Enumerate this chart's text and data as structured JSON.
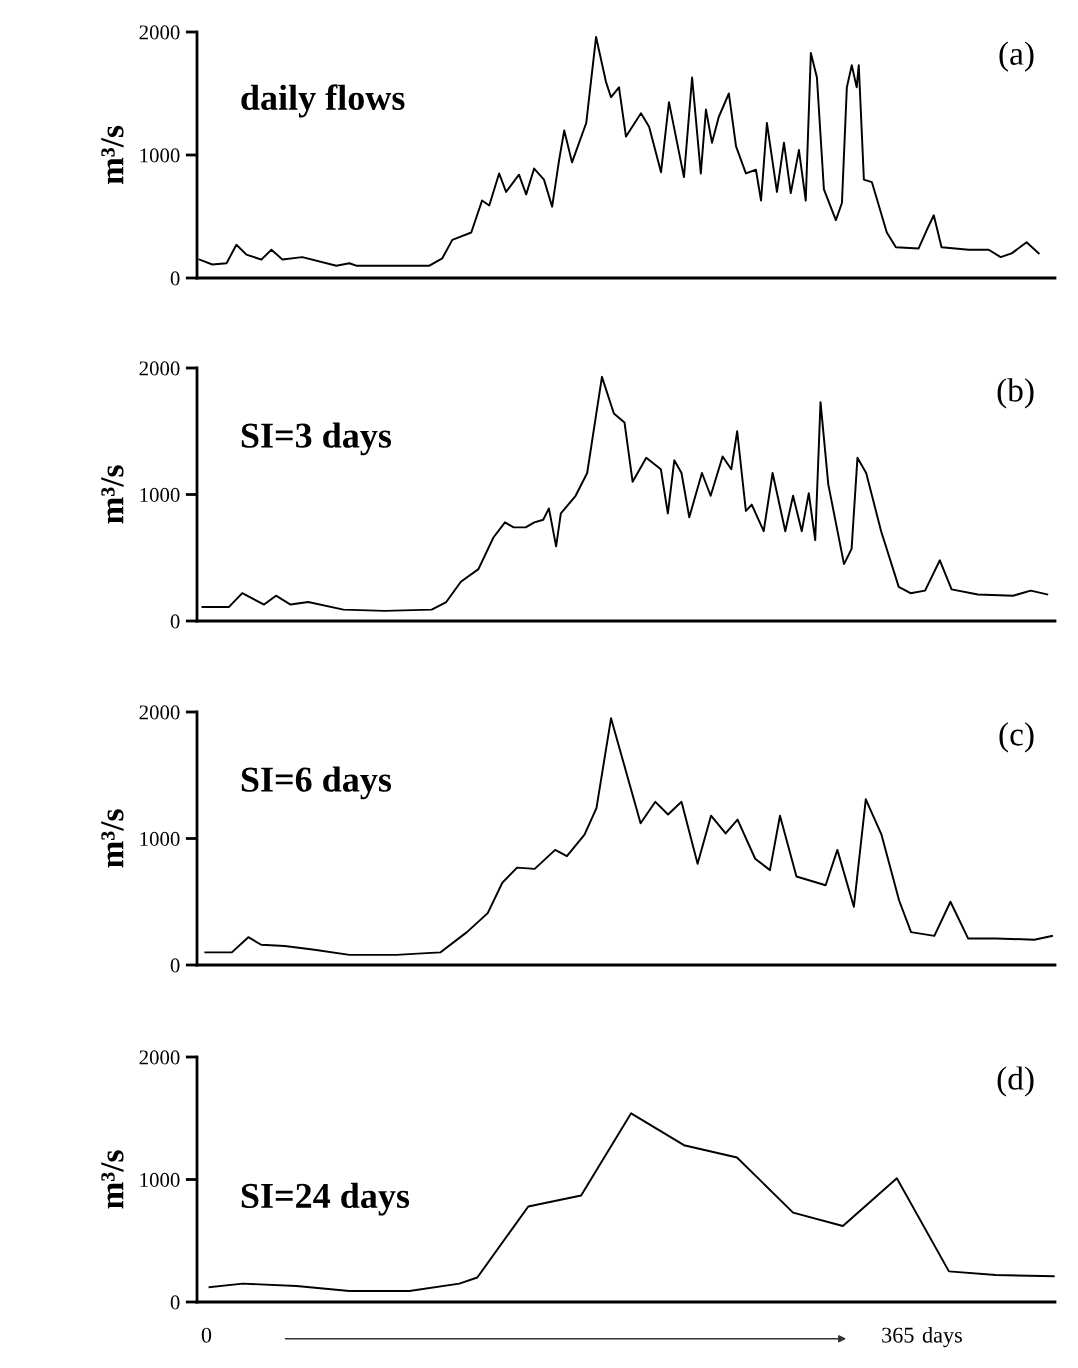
{
  "chart_data": [
    {
      "type": "line",
      "ylabel": "m³/s",
      "annotations": [
        "daily flows",
        "(a)"
      ],
      "color": "#000000",
      "xlim": [
        -5,
        448
      ],
      "ylim": [
        0,
        2000
      ],
      "yticks": [
        0,
        1000,
        2000
      ],
      "tick_labels": "y",
      "x": [
        -3.7,
        3.1,
        10.6,
        15.8,
        21.1,
        29.0,
        34.3,
        40.1,
        50.6,
        68.6,
        75.4,
        79.1,
        117.7,
        124.5,
        129.8,
        139.8,
        145.5,
        149.3,
        154.5,
        158.2,
        165.0,
        168.8,
        173.0,
        178.2,
        182.5,
        186.2,
        188.9,
        193.0,
        200.5,
        205.7,
        211.0,
        213.6,
        217.8,
        221.5,
        229.4,
        233.7,
        240.0,
        244.2,
        252.1,
        256.4,
        261.0,
        263.7,
        266.9,
        270.5,
        275.8,
        279.6,
        284.8,
        290.1,
        292.8,
        295.9,
        301.2,
        304.9,
        308.5,
        312.8,
        316.4,
        319.1,
        322.3,
        326.0,
        332.3,
        335.5,
        338.1,
        340.7,
        343.3,
        344.4,
        347.1,
        351.3,
        359.2,
        364.0,
        376.0,
        380.3,
        384.0,
        388.1,
        402.4,
        413.0,
        419.3,
        425.1,
        433.0,
        439.4
      ],
      "values": [
        150,
        110,
        120,
        270,
        190,
        150,
        230,
        150,
        170,
        100,
        120,
        100,
        100,
        160,
        310,
        370,
        630,
        590,
        850,
        700,
        840,
        680,
        890,
        800,
        580,
        960,
        1200,
        940,
        1260,
        1960,
        1590,
        1470,
        1550,
        1150,
        1340,
        1230,
        860,
        1430,
        820,
        1630,
        850,
        1370,
        1100,
        1310,
        1500,
        1070,
        850,
        880,
        630,
        1260,
        700,
        1100,
        690,
        1040,
        630,
        1830,
        1630,
        720,
        470,
        610,
        1550,
        1730,
        1550,
        1730,
        800,
        780,
        370,
        250,
        240,
        390,
        510,
        250,
        230,
        230,
        170,
        200,
        290,
        200
      ]
    },
    {
      "type": "line",
      "ylabel": "m³/s",
      "annotations": [
        "SI=3 days",
        "(b)"
      ],
      "color": "#000000",
      "xlim": [
        -5,
        448
      ],
      "ylim": [
        0,
        2000
      ],
      "yticks": [
        0,
        1000,
        2000
      ],
      "tick_labels": "y",
      "x": [
        -2.1,
        11.8,
        18.9,
        30.4,
        36.7,
        44.4,
        53.7,
        72.3,
        94.1,
        118.9,
        126.6,
        134.3,
        143.6,
        151.5,
        157.6,
        162.2,
        168.5,
        173.1,
        177.8,
        180.8,
        184.6,
        187.1,
        194.9,
        201.0,
        208.8,
        215.1,
        220.7,
        225.0,
        232.2,
        239.9,
        243.6,
        247.0,
        250.8,
        254.9,
        261.6,
        266.2,
        272.5,
        277.1,
        280.2,
        284.8,
        287.9,
        294.2,
        298.9,
        305.6,
        309.7,
        314.3,
        318.0,
        321.4,
        324.2,
        328.3,
        336.6,
        340.6,
        343.7,
        348.3,
        356.2,
        365.5,
        371.7,
        379.4,
        387.2,
        393.4,
        407.3,
        425.9,
        435.2,
        443.9
      ],
      "values": [
        110,
        110,
        220,
        130,
        200,
        130,
        150,
        90,
        80,
        90,
        150,
        310,
        410,
        660,
        780,
        740,
        740,
        780,
        800,
        890,
        590,
        850,
        990,
        1170,
        1930,
        1640,
        1570,
        1100,
        1290,
        1200,
        850,
        1270,
        1170,
        820,
        1170,
        990,
        1300,
        1200,
        1500,
        870,
        920,
        710,
        1170,
        710,
        990,
        710,
        1010,
        640,
        1730,
        1080,
        450,
        570,
        1290,
        1170,
        710,
        270,
        220,
        240,
        480,
        250,
        210,
        200,
        240,
        210
      ]
    },
    {
      "type": "line",
      "ylabel": "m³/s",
      "annotations": [
        "SI=6 days",
        "(c)"
      ],
      "color": "#000000",
      "xlim": [
        -5,
        448
      ],
      "ylim": [
        0,
        2000
      ],
      "yticks": [
        0,
        1000,
        2000
      ],
      "tick_labels": "y",
      "x": [
        -0.6,
        13.4,
        22.1,
        28.9,
        41.3,
        57.0,
        75.5,
        100.3,
        111.5,
        123.6,
        137.5,
        148.5,
        156.2,
        164.0,
        173.3,
        184.1,
        190.3,
        199.6,
        205.9,
        213.6,
        229.2,
        237.0,
        243.7,
        250.8,
        259.3,
        266.4,
        274.1,
        280.4,
        289.7,
        297.5,
        302.8,
        311.5,
        326.9,
        333.1,
        341.8,
        348.1,
        356.4,
        365.7,
        372.0,
        384.3,
        392.8,
        402.1,
        416.9,
        437.1,
        446.4
      ],
      "values": [
        100,
        100,
        220,
        160,
        150,
        120,
        80,
        80,
        90,
        100,
        260,
        410,
        650,
        770,
        760,
        910,
        860,
        1030,
        1240,
        1950,
        1120,
        1290,
        1190,
        1290,
        800,
        1180,
        1040,
        1150,
        840,
        750,
        1180,
        700,
        630,
        910,
        460,
        1310,
        1030,
        510,
        260,
        230,
        500,
        210,
        210,
        200,
        230
      ]
    },
    {
      "type": "line",
      "ylabel": "m³/s",
      "annotations": [
        "SI=24 days",
        "(d)"
      ],
      "xlabel": "days",
      "color": "#000000",
      "xlim": [
        -5,
        448
      ],
      "ylim": [
        0,
        2000
      ],
      "yticks": [
        0,
        1000,
        2000
      ],
      "xticks": [
        0,
        365
      ],
      "x": [
        1.6,
        19.1,
        47.5,
        75.5,
        107.1,
        133.5,
        143.0,
        169.9,
        197.8,
        224.2,
        252.1,
        280.1,
        309.7,
        336.0,
        364.5,
        392.0,
        416.7,
        447.3
      ],
      "values": [
        120,
        150,
        130,
        90,
        90,
        150,
        200,
        780,
        870,
        1540,
        1280,
        1180,
        730,
        620,
        1010,
        250,
        220,
        210
      ]
    }
  ]
}
